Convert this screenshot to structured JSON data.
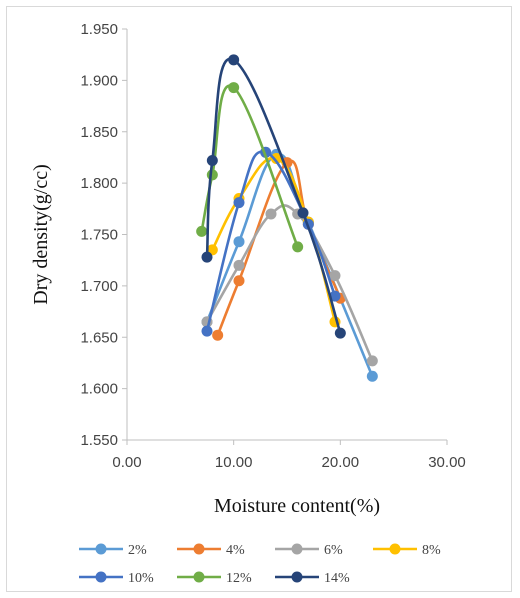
{
  "chart_data": {
    "type": "line",
    "title": "",
    "xlabel": "Moisture content(%)",
    "ylabel": "Dry density(g/cc)",
    "xlim": [
      0,
      30
    ],
    "ylim": [
      1.55,
      1.95
    ],
    "x_ticks": [
      "0.00",
      "10.00",
      "20.00",
      "30.00"
    ],
    "y_ticks": [
      "1.550",
      "1.600",
      "1.650",
      "1.700",
      "1.750",
      "1.800",
      "1.850",
      "1.900",
      "1.950"
    ],
    "smooth": true,
    "grid": false,
    "legend_position": "bottom",
    "series": [
      {
        "name": "2%",
        "color": "#5b9bd5",
        "points": [
          [
            7.5,
            1.665
          ],
          [
            10.5,
            1.743
          ],
          [
            14.0,
            1.828
          ],
          [
            17.0,
            1.762
          ],
          [
            23.0,
            1.612
          ]
        ]
      },
      {
        "name": "4%",
        "color": "#ed7d31",
        "points": [
          [
            8.5,
            1.652
          ],
          [
            10.5,
            1.705
          ],
          [
            15.0,
            1.82
          ],
          [
            17.0,
            1.76
          ],
          [
            20.0,
            1.688
          ]
        ]
      },
      {
        "name": "6%",
        "color": "#a5a5a5",
        "points": [
          [
            7.5,
            1.665
          ],
          [
            10.5,
            1.72
          ],
          [
            13.5,
            1.77
          ],
          [
            16.0,
            1.77
          ],
          [
            19.5,
            1.71
          ],
          [
            23.0,
            1.627
          ]
        ]
      },
      {
        "name": "8%",
        "color": "#ffc000",
        "points": [
          [
            8.0,
            1.735
          ],
          [
            10.5,
            1.785
          ],
          [
            14.0,
            1.824
          ],
          [
            17.0,
            1.762
          ],
          [
            19.5,
            1.665
          ]
        ]
      },
      {
        "name": "10%",
        "color": "#4472c4",
        "points": [
          [
            7.5,
            1.656
          ],
          [
            10.5,
            1.781
          ],
          [
            13.0,
            1.83
          ],
          [
            17.0,
            1.76
          ],
          [
            19.5,
            1.69
          ]
        ]
      },
      {
        "name": "12%",
        "color": "#70ad47",
        "points": [
          [
            7.0,
            1.753
          ],
          [
            8.0,
            1.808
          ],
          [
            10.0,
            1.893
          ],
          [
            16.0,
            1.738
          ]
        ]
      },
      {
        "name": "14%",
        "color": "#264478",
        "points": [
          [
            7.5,
            1.728
          ],
          [
            8.0,
            1.822
          ],
          [
            10.0,
            1.92
          ],
          [
            16.5,
            1.771
          ],
          [
            20.0,
            1.654
          ]
        ]
      }
    ]
  }
}
